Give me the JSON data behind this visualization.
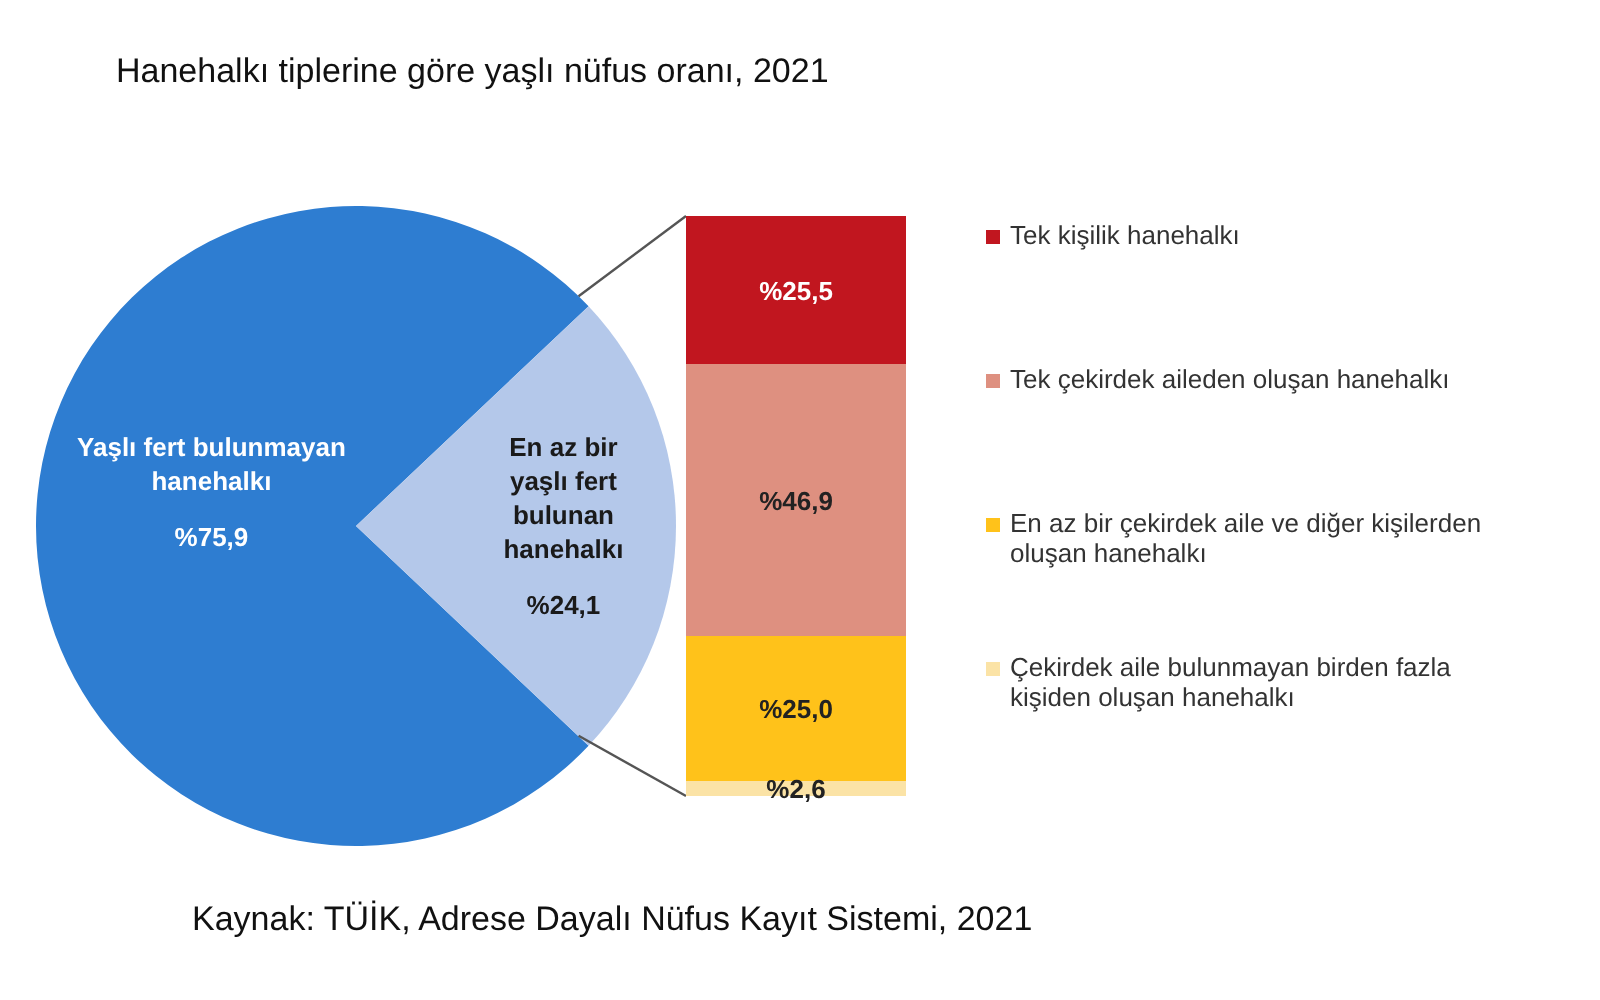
{
  "chart_data": [
    {
      "type": "pie",
      "title": "Hanehalkı tiplerine göre yaşlı nüfus oranı, 2021",
      "categories": [
        "Yaşlı fert bulunmayan hanehalkı",
        "En az bir yaşlı fert bulunan hanehalkı"
      ],
      "values": [
        75.9,
        24.1
      ],
      "colors": [
        "#2e7dd1",
        "#b4c8ea"
      ],
      "value_labels": [
        "%75,9",
        "%24,1"
      ],
      "annotations": [
        "Kaynak: TÜİK, Adrese Dayalı Nüfus Kayıt Sistemi, 2021"
      ]
    },
    {
      "type": "bar",
      "stacked": true,
      "categories": [
        null
      ],
      "tick_labels": false,
      "legend": "right",
      "series": [
        {
          "name": "Çekirdek aile bulunmayan birden fazla kişiden oluşan hanehalkı",
          "color": "#fbe3a6",
          "values": [
            2.6
          ],
          "value_labels": [
            "%2,6"
          ]
        },
        {
          "name": "En az bir çekirdek aile ve diğer kişilerden oluşan hanehalkı",
          "color": "#ffc21a",
          "values": [
            25.0
          ],
          "value_labels": [
            "%25,0"
          ]
        },
        {
          "name": "Tek çekirdek aileden oluşan hanehalkı",
          "color": "#de9080",
          "values": [
            46.9
          ],
          "value_labels": [
            "%46,9"
          ]
        },
        {
          "name": "Tek kişilik hanehalkı",
          "color": "#c1161f",
          "values": [
            25.5
          ],
          "value_labels": [
            "%25,5"
          ]
        }
      ]
    }
  ]
}
